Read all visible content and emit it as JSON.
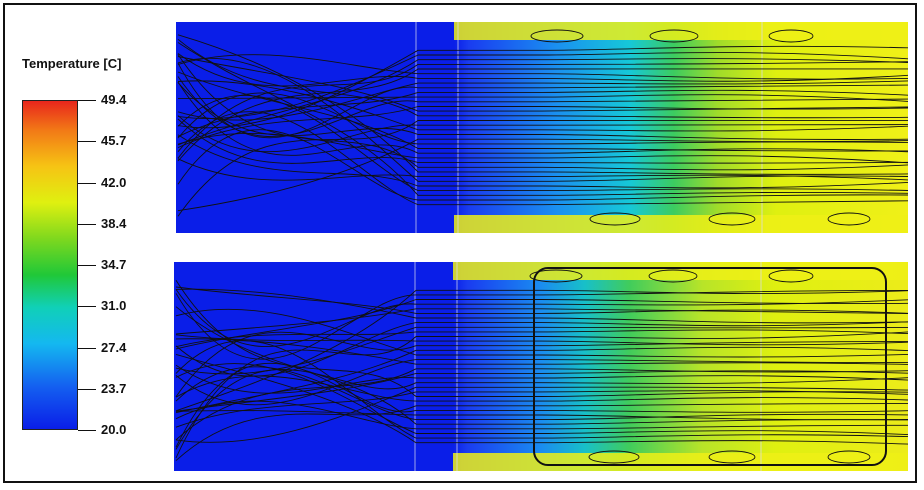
{
  "legend": {
    "title": "Temperature [C]",
    "ticks": [
      "49.4",
      "45.7",
      "42.0",
      "38.4",
      "34.7",
      "31.0",
      "27.4",
      "23.7",
      "20.0"
    ]
  },
  "colors": {
    "min": "#0a1ee8",
    "low": "#14b8f0",
    "mid": "#20c838",
    "high": "#dff010",
    "higher": "#f6c414",
    "max": "#e8261c"
  },
  "panels": [
    {
      "name": "top-simulation-panel"
    },
    {
      "name": "bottom-simulation-panel"
    }
  ]
}
